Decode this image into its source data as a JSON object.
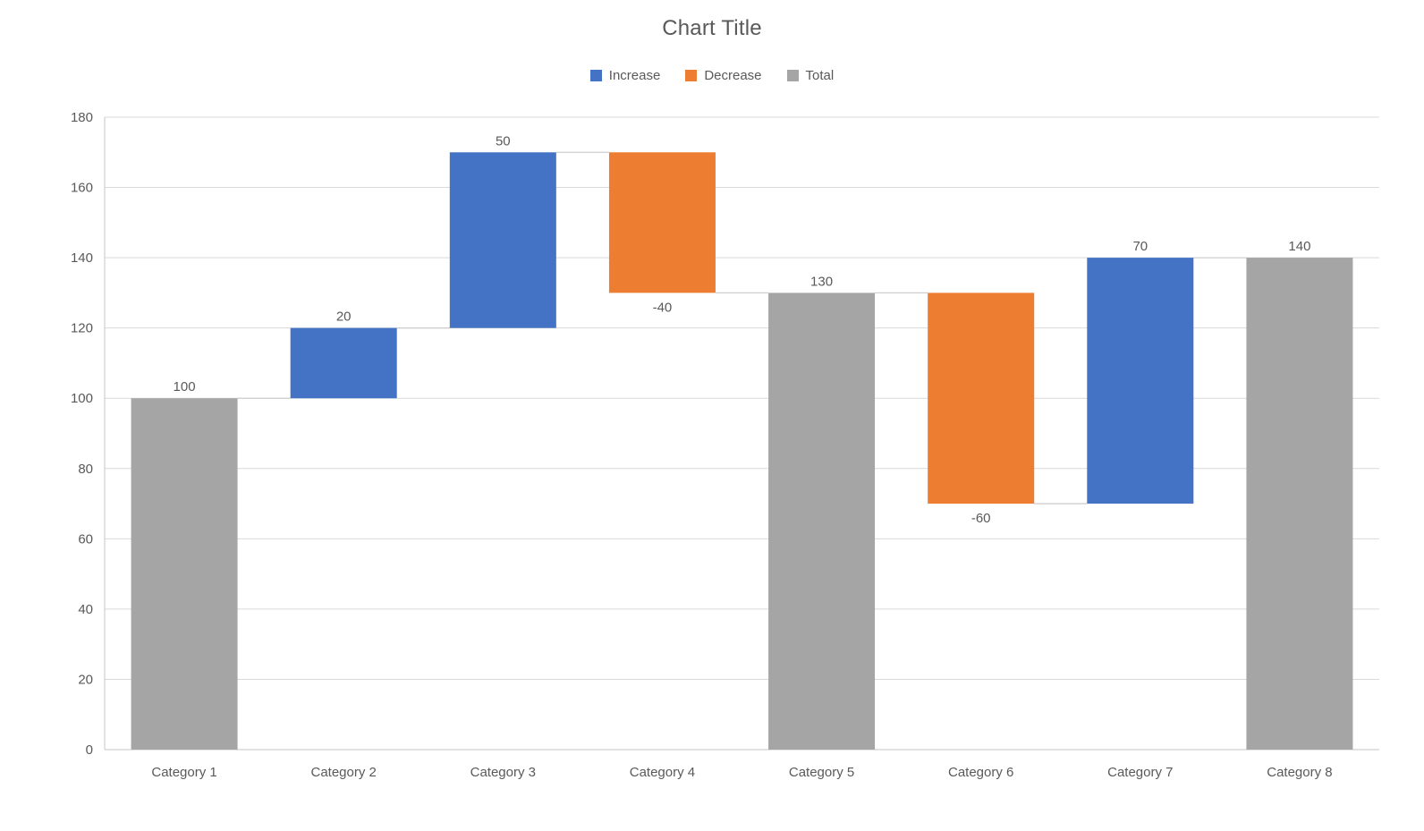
{
  "chart_data": {
    "type": "bar",
    "subtype": "waterfall",
    "title": "Chart Title",
    "categories": [
      "Category 1",
      "Category 2",
      "Category 3",
      "Category 4",
      "Category 5",
      "Category 6",
      "Category 7",
      "Category 8"
    ],
    "values": [
      100,
      20,
      50,
      -40,
      130,
      -60,
      70,
      140
    ],
    "kinds": [
      "total",
      "increase",
      "increase",
      "decrease",
      "total",
      "decrease",
      "increase",
      "total"
    ],
    "labels": [
      "100",
      "20",
      "50",
      "-40",
      "130",
      "-60",
      "70",
      "140"
    ],
    "cumulative_levels": [
      100,
      120,
      170,
      130,
      130,
      70,
      140,
      140
    ],
    "xlabel": "",
    "ylabel": "",
    "ylim": [
      0,
      180
    ],
    "yticks": [
      0,
      20,
      40,
      60,
      80,
      100,
      120,
      140,
      160,
      180
    ],
    "grid": true,
    "connectors": true,
    "legend": {
      "position": "top",
      "entries": [
        {
          "key": "increase",
          "label": "Increase",
          "color": "#4472C4"
        },
        {
          "key": "decrease",
          "label": "Decrease",
          "color": "#ED7D31"
        },
        {
          "key": "total",
          "label": "Total",
          "color": "#A5A5A5"
        }
      ]
    },
    "colors": {
      "increase": "#4472C4",
      "decrease": "#ED7D31",
      "total": "#A5A5A5",
      "gridline": "#D9D9D9",
      "axis": "#C6C6C6",
      "connector": "#CFCFCF",
      "text": "#595959"
    }
  }
}
